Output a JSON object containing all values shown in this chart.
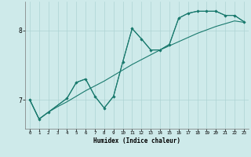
{
  "xlabel": "Humidex (Indice chaleur)",
  "bg_color": "#ceeaea",
  "line_color": "#1a7a6e",
  "grid_color": "#aed4d4",
  "xlim": [
    -0.5,
    23.5
  ],
  "ylim": [
    6.58,
    8.42
  ],
  "yticks": [
    7,
    8
  ],
  "xticks": [
    0,
    1,
    2,
    3,
    4,
    5,
    6,
    7,
    8,
    9,
    10,
    11,
    12,
    13,
    14,
    15,
    16,
    17,
    18,
    19,
    20,
    21,
    22,
    23
  ],
  "line1_x": [
    0,
    1,
    2,
    3,
    4,
    5,
    6,
    7,
    8,
    9,
    10,
    11,
    12,
    13,
    14,
    15,
    16,
    17,
    18,
    19,
    20,
    21,
    22,
    23
  ],
  "line1_y": [
    7.0,
    6.72,
    6.82,
    6.9,
    6.97,
    7.05,
    7.13,
    7.2,
    7.27,
    7.35,
    7.43,
    7.51,
    7.58,
    7.65,
    7.72,
    7.78,
    7.84,
    7.9,
    7.96,
    8.01,
    8.06,
    8.1,
    8.14,
    8.12
  ],
  "line2_x": [
    0,
    1,
    2,
    4,
    5,
    6,
    7,
    8,
    9,
    10,
    11,
    12,
    13,
    14,
    15,
    16,
    17,
    18,
    19,
    20,
    21,
    22,
    23
  ],
  "line2_y": [
    7.0,
    6.72,
    6.82,
    7.02,
    7.25,
    7.3,
    7.05,
    6.88,
    7.05,
    7.55,
    8.03,
    7.88,
    7.72,
    7.72,
    7.8,
    8.18,
    8.25,
    8.28,
    8.28,
    8.28,
    8.22,
    8.22,
    8.13
  ],
  "line3_x": [
    0,
    1,
    2,
    4,
    5,
    6,
    7,
    8,
    9,
    10,
    11,
    12,
    13,
    14,
    15,
    16,
    17,
    18,
    19,
    20,
    21,
    22,
    23
  ],
  "line3_y": [
    7.0,
    6.72,
    6.82,
    7.02,
    7.25,
    7.3,
    7.05,
    6.88,
    7.05,
    7.55,
    8.03,
    7.88,
    7.72,
    7.72,
    7.8,
    8.18,
    8.25,
    8.28,
    8.28,
    8.28,
    8.22,
    8.22,
    8.13
  ]
}
